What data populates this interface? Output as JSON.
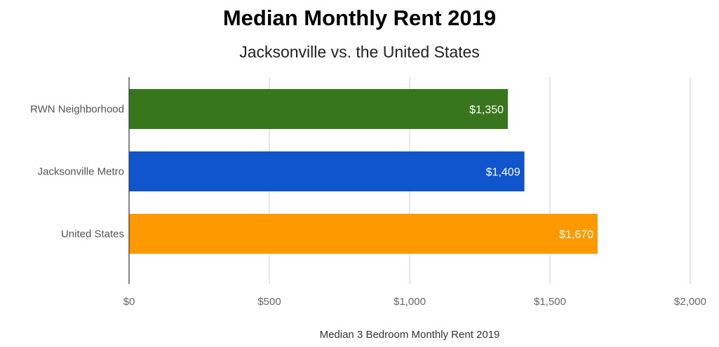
{
  "chart_data": {
    "type": "bar",
    "orientation": "horizontal",
    "title": "Median Monthly Rent 2019",
    "subtitle": "Jacksonville vs. the United States",
    "xlabel": "Median 3 Bedroom Monthly Rent 2019",
    "ylabel": "",
    "categories": [
      "RWN Neighborhood",
      "Jacksonville Metro",
      "United States"
    ],
    "values": [
      1350,
      1409,
      1670
    ],
    "value_labels": [
      "$1,350",
      "$1,409",
      "$1,670"
    ],
    "colors": [
      "#38761d",
      "#1155cc",
      "#ff9900"
    ],
    "xlim": [
      0,
      2000
    ],
    "ticks": [
      0,
      500,
      1000,
      1500,
      2000
    ],
    "tick_labels": [
      "$0",
      "$500",
      "$1,000",
      "$1,500",
      "$2,000"
    ],
    "grid": true,
    "legend": "none"
  }
}
